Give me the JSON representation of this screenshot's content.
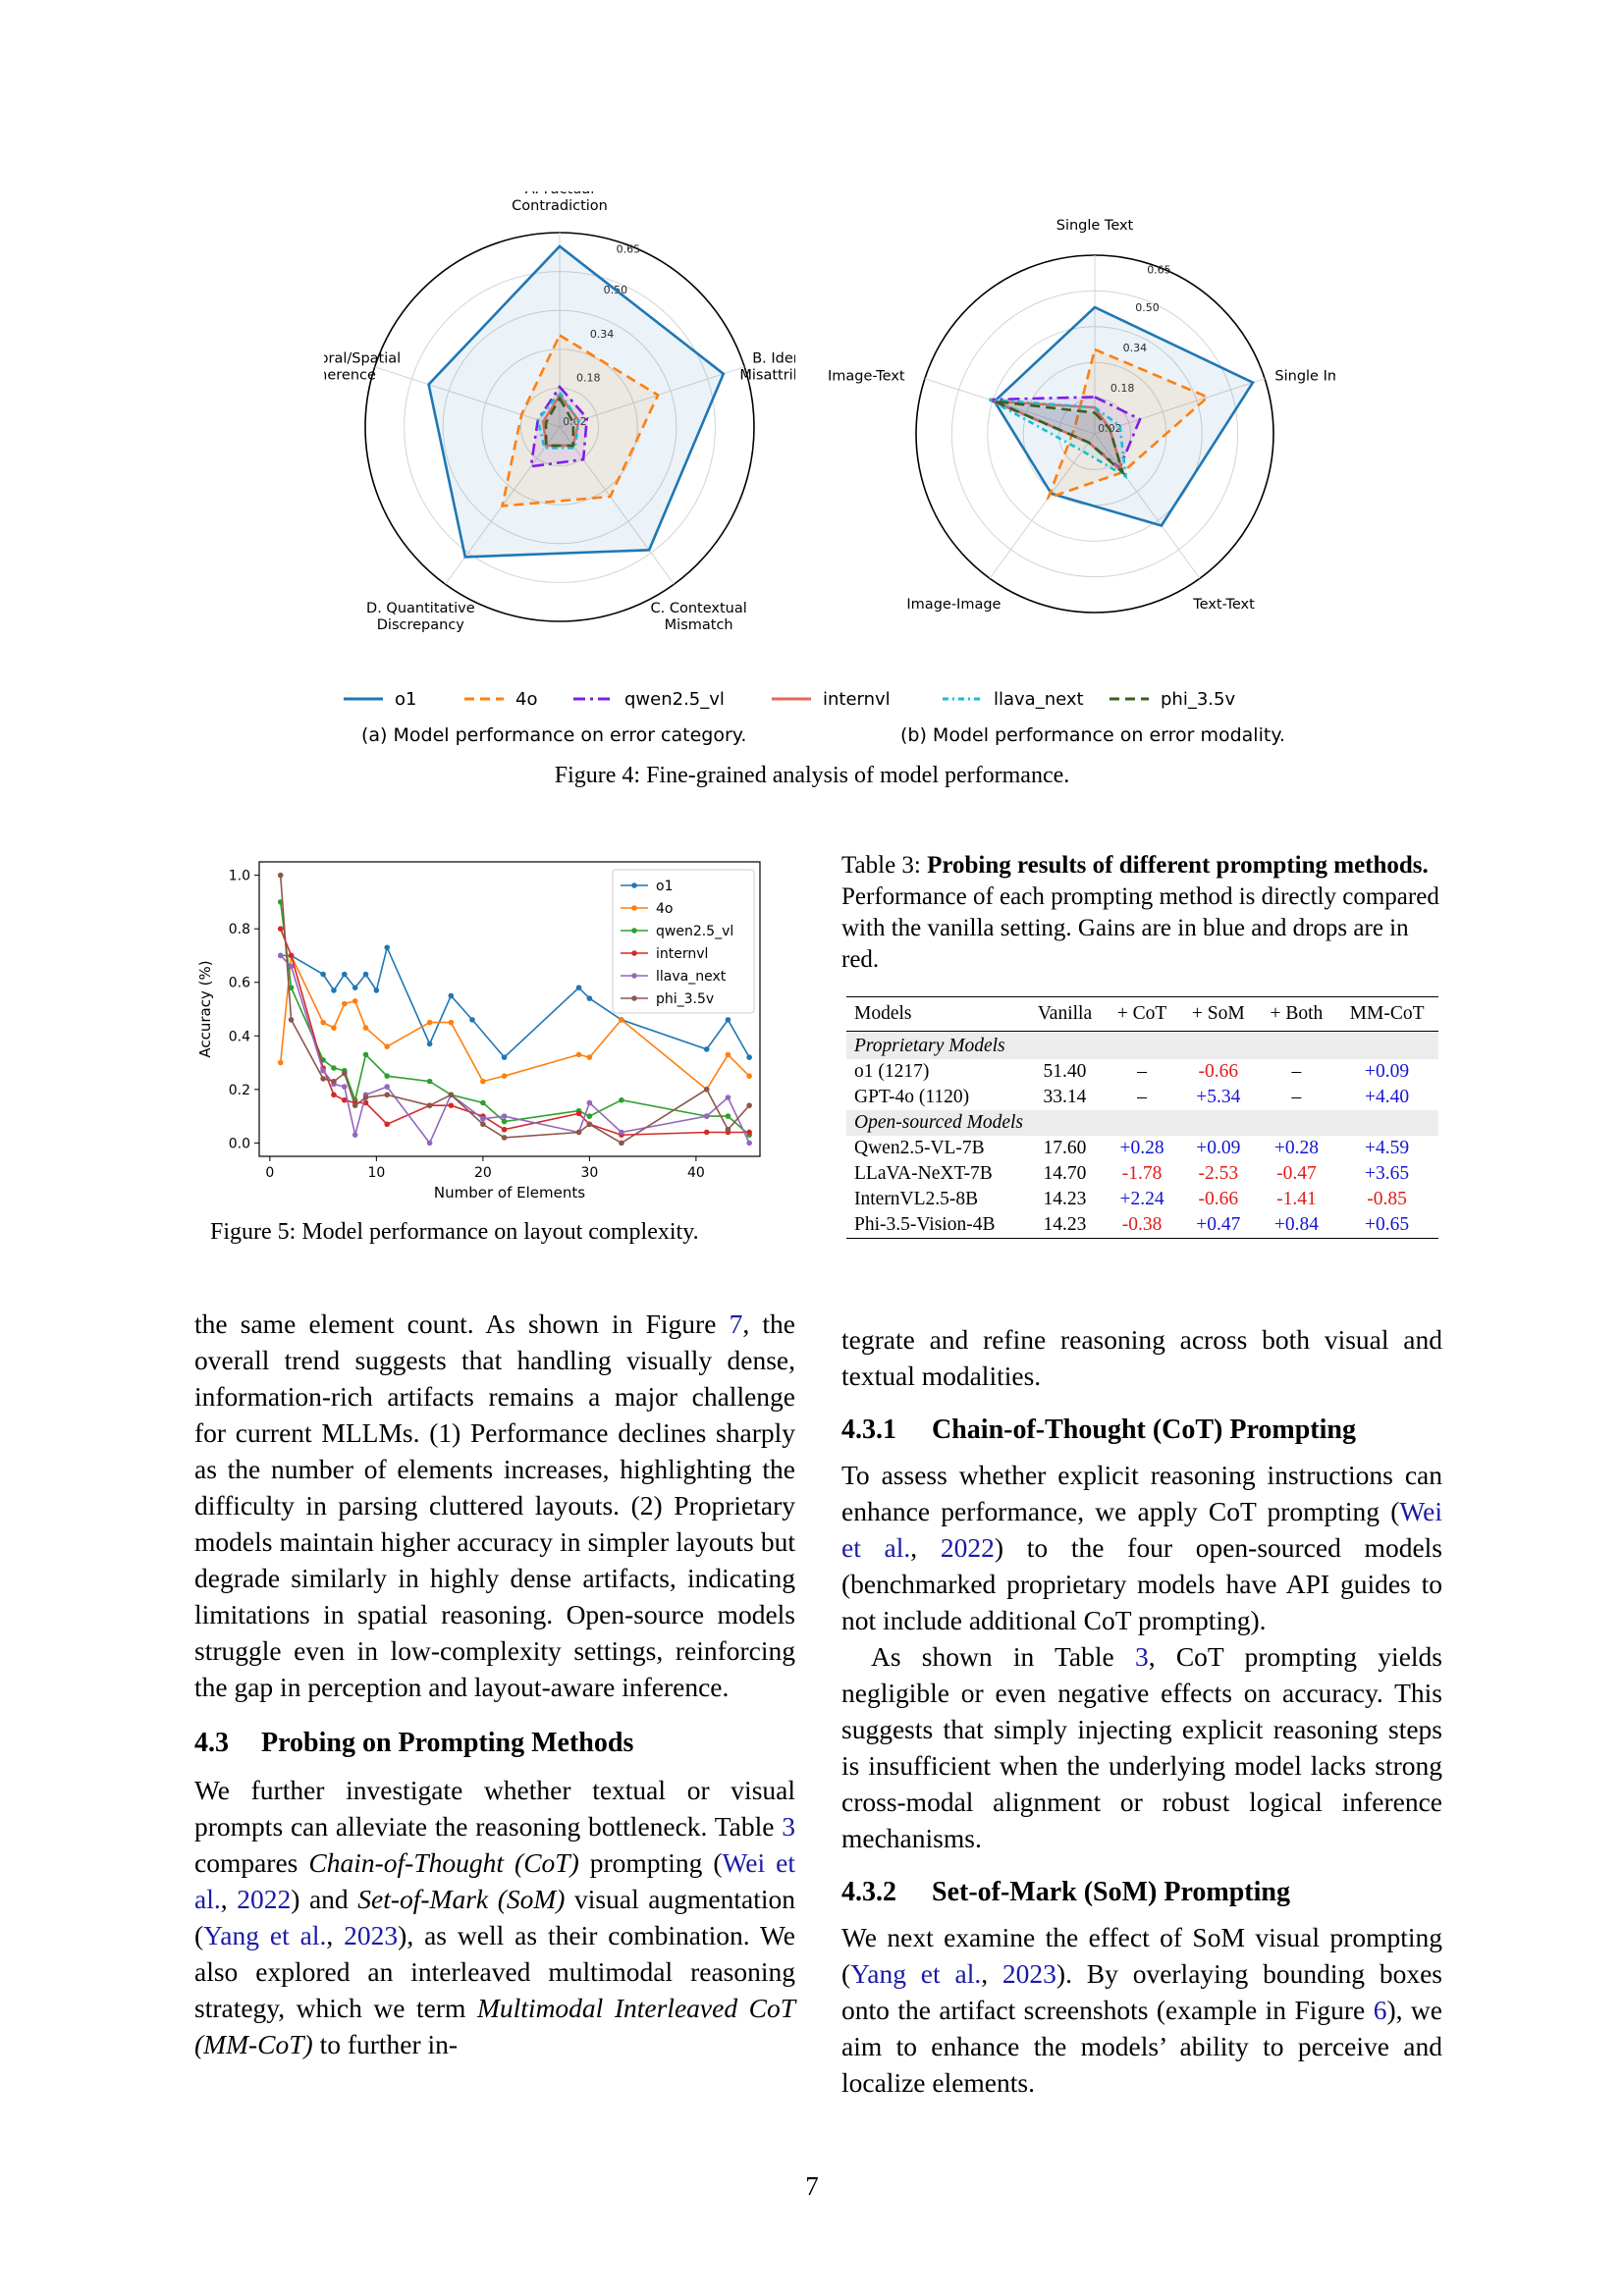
{
  "radar_a": {
    "axes": [
      "A. Factual|Contradiction",
      "B. Identity|Misattribution",
      "C. Contextual|Mismatch",
      "D. Quantitative|Discrepancy",
      "E. Temporal/Spatial|Incoherence"
    ],
    "ticks": [
      "0.02",
      "0.18",
      "0.34",
      "0.50",
      "0.65"
    ],
    "caption": "(a) Model performance on error category."
  },
  "radar_b": {
    "axes": [
      "Single Text",
      "Single Image",
      "Text-Text",
      "Image-Image",
      "Image-Text"
    ],
    "ticks": [
      "0.02",
      "0.18",
      "0.34",
      "0.50",
      "0.65"
    ],
    "caption": "(b) Model performance on error modality."
  },
  "legend": {
    "items": [
      {
        "label": "o1",
        "color": "#1f77b4",
        "dash": ""
      },
      {
        "label": "4o",
        "color": "#ff7f0e",
        "dash": "10,6"
      },
      {
        "label": "qwen2.5_vl",
        "color": "#7b1fe6",
        "dash": "12,5,3,5"
      },
      {
        "label": "internvl",
        "color": "#e8665d",
        "dash": ""
      },
      {
        "label": "llava_next",
        "color": "#17becf",
        "dash": "6,4,2,4"
      },
      {
        "label": "phi_3.5v",
        "color": "#3b5e1f",
        "dash": "10,6"
      }
    ]
  },
  "figure4_caption": "Figure 4: Fine-grained analysis of model performance.",
  "figure5_caption": "Figure 5: Model performance on layout complexity.",
  "chart_data": [
    {
      "type": "radar",
      "axes": [
        "A. Factual Contradiction",
        "B. Identity Misattribution",
        "C. Contextual Mismatch",
        "D. Quantitative Discrepancy",
        "E. Temporal/Spatial Incoherence"
      ],
      "rlim": [
        0.02,
        0.65
      ],
      "series": [
        {
          "name": "o1",
          "values": [
            0.65,
            0.62,
            0.55,
            0.58,
            0.5
          ]
        },
        {
          "name": "4o",
          "values": [
            0.34,
            0.38,
            0.32,
            0.36,
            0.16
          ]
        },
        {
          "name": "qwen2.5_vl",
          "values": [
            0.16,
            0.12,
            0.16,
            0.19,
            0.1
          ]
        },
        {
          "name": "internvl",
          "values": [
            0.13,
            0.09,
            0.1,
            0.1,
            0.08
          ]
        },
        {
          "name": "llava_next",
          "values": [
            0.14,
            0.09,
            0.11,
            0.11,
            0.1
          ]
        },
        {
          "name": "phi_3.5v",
          "values": [
            0.12,
            0.07,
            0.1,
            0.1,
            0.07
          ]
        }
      ]
    },
    {
      "type": "radar",
      "axes": [
        "Single Text",
        "Single Image",
        "Text-Text",
        "Image-Image",
        "Image-Text"
      ],
      "rlim": [
        0.02,
        0.65
      ],
      "series": [
        {
          "name": "o1",
          "values": [
            0.5,
            0.65,
            0.45,
            0.3,
            0.42
          ]
        },
        {
          "name": "4o",
          "values": [
            0.34,
            0.47,
            0.2,
            0.32,
            0.1
          ]
        },
        {
          "name": "qwen2.5_vl",
          "values": [
            0.16,
            0.2,
            0.18,
            0.06,
            0.44
          ]
        },
        {
          "name": "internvl",
          "values": [
            0.12,
            0.08,
            0.2,
            0.06,
            0.42
          ]
        },
        {
          "name": "llava_next",
          "values": [
            0.12,
            0.12,
            0.22,
            0.1,
            0.44
          ]
        },
        {
          "name": "phi_3.5v",
          "values": [
            0.1,
            0.08,
            0.2,
            0.06,
            0.42
          ]
        }
      ]
    },
    {
      "type": "line",
      "xlabel": "Number of Elements",
      "ylabel": "Accuracy (%)",
      "xlim": [
        -1,
        46
      ],
      "ylim": [
        -0.05,
        1.05
      ],
      "xticks": [
        0,
        10,
        20,
        30,
        40
      ],
      "yticks": [
        "0.0",
        "0.2",
        "0.4",
        "0.6",
        "0.8",
        "1.0"
      ],
      "legend": "top-right",
      "series": [
        {
          "name": "o1",
          "color": "#1f77b4",
          "points": [
            [
              1,
              0.7
            ],
            [
              2,
              0.7
            ],
            [
              5,
              0.63
            ],
            [
              6,
              0.57
            ],
            [
              7,
              0.63
            ],
            [
              8,
              0.58
            ],
            [
              9,
              0.63
            ],
            [
              10,
              0.57
            ],
            [
              11,
              0.73
            ],
            [
              15,
              0.37
            ],
            [
              17,
              0.55
            ],
            [
              19,
              0.46
            ],
            [
              22,
              0.32
            ],
            [
              29,
              0.58
            ],
            [
              30,
              0.54
            ],
            [
              33,
              0.46
            ],
            [
              41,
              0.35
            ],
            [
              43,
              0.46
            ],
            [
              45,
              0.32
            ]
          ]
        },
        {
          "name": "4o",
          "color": "#ff7f0e",
          "points": [
            [
              1,
              0.3
            ],
            [
              2,
              0.7
            ],
            [
              5,
              0.45
            ],
            [
              6,
              0.43
            ],
            [
              7,
              0.52
            ],
            [
              8,
              0.53
            ],
            [
              9,
              0.43
            ],
            [
              11,
              0.36
            ],
            [
              15,
              0.45
            ],
            [
              17,
              0.45
            ],
            [
              20,
              0.23
            ],
            [
              22,
              0.25
            ],
            [
              29,
              0.33
            ],
            [
              30,
              0.32
            ],
            [
              33,
              0.46
            ],
            [
              41,
              0.2
            ],
            [
              43,
              0.33
            ],
            [
              45,
              0.25
            ]
          ]
        },
        {
          "name": "qwen2.5_vl",
          "color": "#2ca02c",
          "points": [
            [
              1,
              0.9
            ],
            [
              2,
              0.58
            ],
            [
              5,
              0.31
            ],
            [
              6,
              0.28
            ],
            [
              7,
              0.27
            ],
            [
              8,
              0.16
            ],
            [
              9,
              0.33
            ],
            [
              11,
              0.25
            ],
            [
              15,
              0.23
            ],
            [
              17,
              0.18
            ],
            [
              20,
              0.15
            ],
            [
              22,
              0.08
            ],
            [
              29,
              0.12
            ],
            [
              30,
              0.1
            ],
            [
              33,
              0.16
            ],
            [
              41,
              0.1
            ],
            [
              43,
              0.1
            ],
            [
              45,
              0.03
            ]
          ]
        },
        {
          "name": "internvl",
          "color": "#d62728",
          "points": [
            [
              1,
              0.8
            ],
            [
              2,
              0.7
            ],
            [
              5,
              0.28
            ],
            [
              6,
              0.18
            ],
            [
              7,
              0.16
            ],
            [
              8,
              0.15
            ],
            [
              9,
              0.15
            ],
            [
              11,
              0.07
            ],
            [
              15,
              0.14
            ],
            [
              17,
              0.14
            ],
            [
              20,
              0.1
            ],
            [
              22,
              0.05
            ],
            [
              29,
              0.11
            ],
            [
              30,
              0.07
            ],
            [
              33,
              0.03
            ],
            [
              41,
              0.04
            ],
            [
              43,
              0.04
            ],
            [
              45,
              0.04
            ]
          ]
        },
        {
          "name": "llava_next",
          "color": "#9467bd",
          "points": [
            [
              1,
              0.7
            ],
            [
              2,
              0.66
            ],
            [
              5,
              0.27
            ],
            [
              6,
              0.22
            ],
            [
              7,
              0.21
            ],
            [
              8,
              0.03
            ],
            [
              9,
              0.18
            ],
            [
              11,
              0.21
            ],
            [
              15,
              0.0
            ],
            [
              17,
              0.18
            ],
            [
              20,
              0.09
            ],
            [
              22,
              0.1
            ],
            [
              29,
              0.04
            ],
            [
              30,
              0.15
            ],
            [
              33,
              0.04
            ],
            [
              41,
              0.1
            ],
            [
              43,
              0.17
            ],
            [
              45,
              0.0
            ]
          ]
        },
        {
          "name": "phi_3.5v",
          "color": "#8c564b",
          "points": [
            [
              1,
              1.0
            ],
            [
              2,
              0.46
            ],
            [
              5,
              0.24
            ],
            [
              6,
              0.23
            ],
            [
              7,
              0.26
            ],
            [
              8,
              0.14
            ],
            [
              9,
              0.17
            ],
            [
              11,
              0.18
            ],
            [
              15,
              0.14
            ],
            [
              17,
              0.18
            ],
            [
              20,
              0.07
            ],
            [
              22,
              0.02
            ],
            [
              29,
              0.04
            ],
            [
              30,
              0.07
            ],
            [
              33,
              0.0
            ],
            [
              41,
              0.2
            ],
            [
              43,
              0.05
            ],
            [
              45,
              0.14
            ]
          ]
        }
      ]
    }
  ],
  "table3": {
    "caption_label": "Table 3:",
    "caption_bold": "Probing results of different prompting methods.",
    "caption_rest": "Performance of each prompting method is directly compared with the vanilla setting. Gains are in blue and drops are in red.",
    "headers": [
      "Models",
      "Vanilla",
      "+ CoT",
      "+ SoM",
      "+ Both",
      "MM-CoT"
    ],
    "group_proprietary": "Proprietary Models",
    "group_open": "Open-sourced Models",
    "rows_proprietary": [
      [
        "o1 (1217)",
        "51.40",
        "–",
        "-0.66",
        "–",
        "+0.09"
      ],
      [
        "GPT-4o (1120)",
        "33.14",
        "–",
        "+5.34",
        "–",
        "+4.40"
      ]
    ],
    "rows_open": [
      [
        "Qwen2.5-VL-7B",
        "17.60",
        "+0.28",
        "+0.09",
        "+0.28",
        "+4.59"
      ],
      [
        "LLaVA-NeXT-7B",
        "14.70",
        "-1.78",
        "-2.53",
        "-0.47",
        "+3.65"
      ],
      [
        "InternVL2.5-8B",
        "14.23",
        "+2.24",
        "-0.66",
        "-1.41",
        "-0.85"
      ],
      [
        "Phi-3.5-Vision-4B",
        "14.23",
        "-0.38",
        "+0.47",
        "+0.84",
        "+0.65"
      ]
    ]
  },
  "left_text": {
    "p1_a": "the same element count.  As shown in Figure ",
    "p1_fig": "7",
    "p1_b": ", the overall trend suggests that handling visually dense, information-rich artifacts remains a major challenge for current MLLMs. (1) Performance declines sharply as the number of elements increases, highlighting the difficulty in parsing cluttered layouts.  (2) Proprietary models maintain higher accuracy in simpler layouts but degrade similarly in highly dense artifacts, indicating limitations in spatial reasoning. Open-source models struggle even in low-complexity settings, reinforcing the gap in perception and layout-aware inference.",
    "h43_num": "4.3",
    "h43_title": "Probing on Prompting Methods",
    "p2_a": "We further investigate whether textual or visual prompts can alleviate the reasoning bottleneck. Table ",
    "p2_tab": "3",
    "p2_b": " compares ",
    "p2_cot": "Chain-of-Thought (CoT)",
    "p2_c": " prompting (",
    "p2_wei": "Wei et al.",
    "p2_d": ", ",
    "p2_wei_year": "2022",
    "p2_e": ") and ",
    "p2_som": "Set-of-Mark (SoM)",
    "p2_f": " visual augmentation (",
    "p2_yang": "Yang et al.",
    "p2_g": ", ",
    "p2_yang_year": "2023",
    "p2_h": "), as well as their combination. We also explored an interleaved multimodal reasoning strategy, which we term ",
    "p2_mmcot": "Multimodal Interleaved CoT (MM-CoT)",
    "p2_i": " to further in-"
  },
  "right_text": {
    "p0": "tegrate and refine reasoning across both visual and textual modalities.",
    "h431_num": "4.3.1",
    "h431_title": "Chain-of-Thought (CoT) Prompting",
    "p1_a": "To assess whether explicit reasoning instructions can enhance performance, we apply CoT prompting (",
    "p1_wei": "Wei et al.",
    "p1_b": ", ",
    "p1_wei_year": "2022",
    "p1_c": ") to the four open-sourced models (benchmarked proprietary models have API guides to not include additional CoT prompting).",
    "p2_a": "As shown in Table ",
    "p2_tab": "3",
    "p2_b": ", CoT prompting yields negligible or even negative effects on accuracy. This suggests that simply injecting explicit reasoning steps is insufficient when the underlying model lacks strong cross-modal alignment or robust logical inference mechanisms.",
    "h432_num": "4.3.2",
    "h432_title": "Set-of-Mark (SoM) Prompting",
    "p3_a": "We next examine the effect of SoM visual prompting (",
    "p3_yang": "Yang et al.",
    "p3_b": ", ",
    "p3_yang_year": "2023",
    "p3_c": ").  By overlaying bounding boxes onto the artifact screenshots (example in Figure ",
    "p3_fig": "6",
    "p3_d": "), we aim to enhance the models’ ability to perceive and localize elements."
  },
  "page_number": "7"
}
